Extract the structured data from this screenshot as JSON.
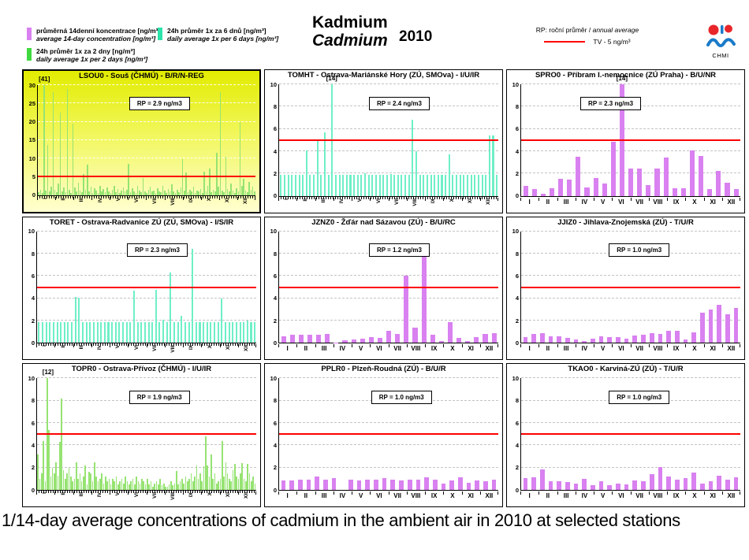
{
  "header": {
    "legend": [
      {
        "color": "#d981f0",
        "line1": "průměrná 14denní koncentrace [ng/m³]",
        "line2": "average 14-day concentration [ng/m³]"
      },
      {
        "color": "#3fd93f",
        "line1": "24h průměr 1x za 2 dny [ng/m³]",
        "line2": "daily average 1x per 2 days [ng/m³]"
      },
      {
        "color": "#2ce3a9",
        "line1": "24h průměr 1x za 6 dnů [ng/m³]",
        "line2": "daily average 1x per 6 days [ng/m³]"
      }
    ],
    "title_cs": "Kadmium",
    "title_en": "Cadmium",
    "year": "2010",
    "rp_note_cs": "RP: roční průměr",
    "rp_note_sep": " / ",
    "rp_note_en": "annual average",
    "tv_label": "TV  - 5 ng/m³",
    "logo_text": "CHMI"
  },
  "caption": "1/14-day average concentrations of cadmium in the ambient air in 2010 at selected stations",
  "months": [
    "I",
    "II",
    "III",
    "IV",
    "V",
    "VI",
    "VII",
    "VIII",
    "IX",
    "X",
    "XI",
    "XII"
  ],
  "chart_data": [
    {
      "type": "bar",
      "title": "LSOU0 - Souš (ČHMÚ) - B/R/N-REG",
      "series": "daily average 1x per 2 days",
      "color": "#96e372",
      "bg": "yellow",
      "ylim": [
        0,
        30
      ],
      "yticks": [
        0,
        5,
        10,
        15,
        20,
        25,
        30
      ],
      "red_line": 5,
      "rp_label": "RP = 2.9 ng/m3",
      "rp_left_pct": 42,
      "cap": {
        "label": "[41]",
        "x_pct": 3
      },
      "rotate_x_labels": true,
      "values": [
        0.8,
        1.5,
        0.6,
        30,
        1.2,
        13.7,
        0.9,
        2.2,
        28,
        1.5,
        0.7,
        3.2,
        22.5,
        1.1,
        2.0,
        0.8,
        29,
        1.4,
        0.6,
        19.5,
        2.1,
        1.0,
        3.4,
        1.2,
        0.7,
        5.8,
        1.5,
        8.2,
        1.0,
        2.3,
        0.6,
        1.8,
        1.2,
        0.5,
        2.5,
        1.0,
        1.6,
        0.7,
        2.0,
        1.1,
        0.5,
        1.4,
        2.6,
        0.8,
        1.7,
        0.6,
        1.2,
        2.1,
        0.9,
        1.5,
        8.5,
        0.7,
        1.9,
        1.1,
        0.5,
        2.4,
        1.3,
        0.8,
        4.6,
        1.0,
        0.6,
        1.5,
        2.2,
        0.9,
        1.3,
        0.5,
        1.8,
        1.0,
        0.7,
        2.6,
        1.2,
        0.6,
        1.6,
        0.9,
        3.0,
        1.1,
        0.5,
        1.4,
        0.8,
        2.0,
        9.9,
        1.2,
        6.2,
        0.7,
        1.5,
        1.0,
        2.3,
        0.6,
        1.3,
        0.9,
        1.7,
        0.5,
        6.3,
        1.1,
        2.4,
        7.2,
        0.8,
        1.5,
        1.0,
        11.5,
        2.2,
        28.0,
        1.3,
        0.7,
        10.5,
        1.6,
        0.9,
        3.1,
        1.2,
        0.6,
        1.8,
        1.0,
        20.0,
        2.5,
        4.5,
        1.3,
        0.8,
        3.6,
        1.5,
        2.3,
        1.0
      ]
    },
    {
      "type": "bar",
      "title": "TOMHT - Ostrava-Mariánské Hory (ZÚ, SMOva) - I/U/IR",
      "series": "daily average 1x per 6 days",
      "color": "#6fefc7",
      "bg": "white",
      "ylim": [
        0,
        10
      ],
      "yticks": [
        0,
        2,
        4,
        6,
        8,
        10
      ],
      "red_line": 5,
      "rp_label": "RP = 2.4 ng/m3",
      "rp_left_pct": 41,
      "cap": {
        "label": "[14]",
        "x_pct": 24
      },
      "rotate_x_labels": true,
      "values": [
        1.85,
        1.85,
        1.85,
        1.85,
        1.85,
        1.85,
        1.85,
        4.1,
        1.85,
        1.85,
        4.9,
        1.85,
        5.7,
        1.85,
        10,
        1.85,
        1.85,
        1.85,
        1.85,
        1.85,
        1.85,
        1.85,
        1.85,
        2.0,
        1.85,
        1.85,
        1.85,
        1.85,
        1.85,
        1.85,
        1.95,
        1.85,
        1.85,
        1.85,
        1.85,
        1.85,
        6.8,
        4.0,
        1.85,
        1.85,
        1.85,
        1.85,
        1.85,
        1.85,
        1.85,
        1.85,
        3.7,
        1.85,
        1.85,
        1.85,
        1.85,
        1.85,
        1.85,
        1.85,
        1.85,
        1.85,
        1.85,
        5.4,
        5.4,
        1.85
      ]
    },
    {
      "type": "bar",
      "title": "SPRO0 - Příbram I.-nemocnice (ZÚ Praha) - B/U/NR",
      "series": "average 14-day concentration",
      "color": "#d981f0",
      "bg": "white",
      "ylim": [
        0,
        10
      ],
      "yticks": [
        0,
        2,
        4,
        6,
        8,
        10
      ],
      "red_line": 5,
      "rp_label": "RP = 2.3 ng/m3",
      "rp_left_pct": 27,
      "cap": {
        "label": "[14]",
        "x_pct": 46
      },
      "rotate_x_labels": false,
      "values": [
        0.9,
        0.6,
        0.2,
        0.7,
        1.55,
        1.45,
        3.5,
        0.75,
        1.6,
        1.1,
        4.85,
        10,
        2.45,
        2.45,
        1.0,
        2.45,
        3.45,
        0.7,
        0.7,
        4.05,
        3.6,
        0.6,
        2.25,
        1.15,
        0.6
      ]
    },
    {
      "type": "bar",
      "title": "TORET - Ostrava-Radvanice ZÚ (ZÚ, SMOva) - I/S/IR",
      "series": "daily average 1x per 6 days",
      "color": "#6fefc7",
      "bg": "white",
      "ylim": [
        0,
        10
      ],
      "yticks": [
        0,
        2,
        4,
        6,
        8,
        10
      ],
      "red_line": 5,
      "rp_label": "RP = 2.3 ng/m3",
      "rp_left_pct": 41,
      "rotate_x_labels": true,
      "values": [
        1.85,
        1.85,
        1.85,
        1.85,
        1.85,
        1.85,
        1.85,
        1.85,
        1.85,
        1.85,
        4.15,
        4.05,
        1.85,
        1.85,
        1.85,
        1.85,
        1.85,
        1.85,
        1.85,
        1.85,
        1.85,
        1.85,
        1.85,
        1.85,
        1.85,
        1.85,
        4.65,
        1.85,
        1.85,
        1.85,
        1.85,
        1.85,
        4.75,
        1.85,
        2.05,
        1.85,
        6.3,
        1.85,
        1.85,
        2.4,
        1.85,
        1.85,
        8.4,
        1.85,
        1.85,
        1.85,
        1.85,
        1.85,
        1.85,
        1.85,
        3.95,
        1.85,
        1.85,
        1.85,
        1.85,
        1.85,
        1.85,
        2.0,
        1.85,
        1.85
      ]
    },
    {
      "type": "bar",
      "title": "JZNZ0 - Žďár nad Sázavou (ZÚ) - B/U/RC",
      "series": "average 14-day concentration",
      "color": "#d981f0",
      "bg": "white",
      "ylim": [
        0,
        10
      ],
      "yticks": [
        0,
        2,
        4,
        6,
        8,
        10
      ],
      "red_line": 5,
      "rp_label": "RP = 1.2 ng/m3",
      "rp_left_pct": 41,
      "rotate_x_labels": false,
      "values": [
        0.6,
        0.75,
        0.75,
        0.7,
        0.7,
        0.8,
        0.05,
        0.25,
        0.3,
        0.4,
        0.5,
        0.45,
        1.05,
        0.8,
        6.05,
        1.35,
        8.25,
        0.75,
        0.2,
        1.85,
        0.45,
        0.2,
        0.55,
        0.8,
        0.85
      ]
    },
    {
      "type": "bar",
      "title": "JJIZ0 - Jihlava-Znojemská (ZÚ) - T/U/R",
      "series": "average 14-day concentration",
      "color": "#d981f0",
      "bg": "white",
      "ylim": [
        0,
        10
      ],
      "yticks": [
        0,
        2,
        4,
        6,
        8,
        10
      ],
      "red_line": 5,
      "rp_label": "RP = 1.0 ng/m3",
      "rp_left_pct": 40,
      "rotate_x_labels": false,
      "values": [
        0.5,
        0.8,
        0.85,
        0.6,
        0.6,
        0.45,
        0.3,
        0.2,
        0.35,
        0.6,
        0.5,
        0.5,
        0.4,
        0.65,
        0.75,
        0.85,
        0.8,
        1.05,
        1.1,
        0.3,
        0.95,
        2.7,
        3.0,
        3.4,
        2.6,
        3.1
      ]
    },
    {
      "type": "bar",
      "title": "TOPR0 - Ostrava-Přívoz (ČHMÚ) - I/U/IR",
      "series": "daily average 1x per 2 days",
      "color": "#96e372",
      "bg": "white",
      "ylim": [
        0,
        10
      ],
      "yticks": [
        0,
        2,
        4,
        6,
        8,
        10
      ],
      "red_line": 5,
      "rp_label": "RP = 1.9 ng/m3",
      "rp_left_pct": 42,
      "cap": {
        "label": "[12]",
        "x_pct": 5
      },
      "rotate_x_labels": true,
      "values": [
        3.2,
        1.0,
        1.5,
        4.4,
        0.8,
        10,
        5.4,
        1.2,
        2.0,
        1.5,
        2.5,
        1.3,
        4.3,
        8.2,
        1.8,
        1.0,
        1.5,
        2.0,
        1.2,
        0.8,
        1.0,
        2.5,
        1.0,
        1.5,
        0.8,
        1.2,
        2.2,
        0.5,
        1.6,
        1.5,
        0.8,
        2.5,
        1.2,
        0.8,
        1.0,
        1.5,
        0.6,
        1.2,
        0.8,
        1.0,
        0.5,
        1.0,
        0.8,
        1.2,
        0.5,
        0.8,
        1.0,
        0.6,
        1.2,
        0.8,
        0.5,
        0.8,
        1.0,
        0.5,
        1.2,
        0.8,
        0.6,
        1.0,
        0.8,
        0.5,
        1.0,
        0.5,
        0.8,
        0.3,
        0.6,
        0.8,
        0.5,
        1.0,
        0.4,
        0.6,
        0.3,
        0.3,
        0.5,
        0.8,
        0.4,
        0.6,
        1.7,
        0.5,
        0.8,
        1.0,
        0.6,
        1.2,
        0.8,
        1.0,
        1.5,
        0.8,
        1.2,
        2.2,
        1.0,
        1.5,
        0.8,
        2.1,
        4.8,
        2.2,
        1.2,
        3.2,
        1.0,
        1.5,
        0.6,
        0.8,
        1.0,
        4.4,
        1.2,
        2.5,
        1.5,
        1.0,
        0.8,
        1.8,
        2.3,
        1.2,
        1.0,
        1.5,
        2.4,
        1.0,
        0.8,
        2.3,
        1.5,
        0.8,
        1.2,
        0.6
      ]
    },
    {
      "type": "bar",
      "title": "PPLR0 - Plzeň-Roudná (ZÚ) - B/U/R",
      "series": "average 14-day concentration",
      "color": "#d981f0",
      "bg": "white",
      "ylim": [
        0,
        10
      ],
      "yticks": [
        0,
        2,
        4,
        6,
        8,
        10
      ],
      "red_line": 5,
      "rp_label": "RP = 1.0 ng/m3",
      "rp_left_pct": 42,
      "rotate_x_labels": false,
      "values": [
        0.85,
        0.85,
        0.95,
        0.95,
        1.2,
        0.95,
        1.05,
        0,
        0.95,
        0.85,
        0.95,
        0.95,
        1.05,
        0.95,
        0.85,
        0.95,
        0.95,
        1.1,
        0.95,
        0.55,
        0.85,
        1.15,
        0.65,
        0.85,
        0.75,
        0.9
      ]
    },
    {
      "type": "bar",
      "title": "TKAO0 - Karviná-ZÚ (ZÚ) - T/U/R",
      "series": "average 14-day concentration",
      "color": "#d981f0",
      "bg": "white",
      "ylim": [
        0,
        10
      ],
      "yticks": [
        0,
        2,
        4,
        6,
        8,
        10
      ],
      "red_line": 5,
      "rp_label": "RP = 1.0 ng/m3",
      "rp_left_pct": 40,
      "rotate_x_labels": false,
      "values": [
        1.05,
        1.1,
        1.85,
        0.8,
        0.75,
        0.7,
        0.6,
        1.0,
        0.4,
        0.8,
        0.45,
        0.55,
        0.5,
        0.85,
        0.8,
        1.4,
        2.05,
        1.2,
        0.9,
        1.05,
        1.55,
        0.55,
        0.8,
        1.25,
        0.95,
        1.1
      ]
    }
  ]
}
